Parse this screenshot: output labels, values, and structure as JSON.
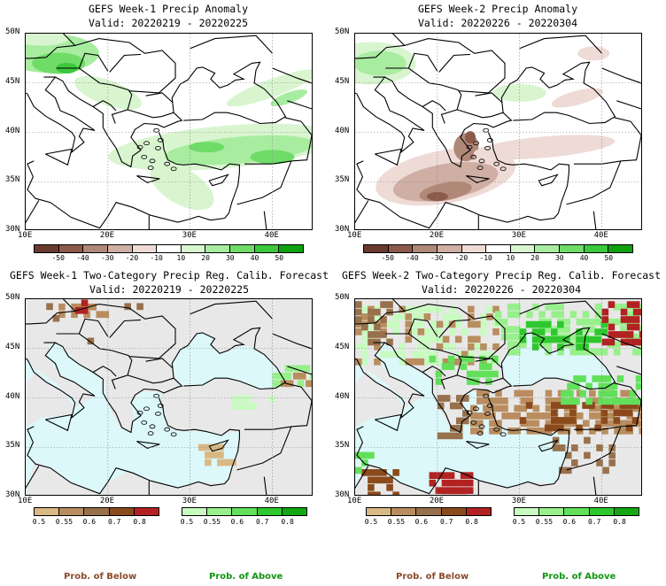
{
  "panels": [
    {
      "title": "GEFS Week-1 Precip Anomaly",
      "valid": "Valid: 20220219 - 20220225"
    },
    {
      "title": "GEFS Week-2 Precip Anomaly",
      "valid": "Valid: 20220226 - 20220304"
    },
    {
      "title": "GEFS Week-1 Two-Category Precip Reg. Calib. Forecast",
      "valid": "Valid: 20220219 - 20220225"
    },
    {
      "title": "GEFS Week-2 Two-Category Precip Reg. Calib. Forecast",
      "valid": "Valid: 20220226 - 20220304"
    }
  ],
  "lat_labels": [
    "50N",
    "45N",
    "40N",
    "35N",
    "30N"
  ],
  "lon_labels": [
    "10E",
    "20E",
    "30E",
    "40E"
  ],
  "anomaly_scale": {
    "labels": [
      "-50",
      "-40",
      "-30",
      "-20",
      "-10",
      "10",
      "20",
      "30",
      "40",
      "50"
    ],
    "colors": [
      "#6b3a2e",
      "#8c5a4a",
      "#b08878",
      "#cfaea4",
      "#eedbd6",
      "#ffffff",
      "#d8f5d0",
      "#a8eca0",
      "#6fdc68",
      "#3cc83c",
      "#0fa00f"
    ]
  },
  "below_scale": {
    "labels": [
      "0.5",
      "0.55",
      "0.6",
      "0.7",
      "0.8"
    ],
    "colors": [
      "#d9b884",
      "#b98d5f",
      "#97704c",
      "#8a4a1c",
      "#b22222"
    ],
    "caption": "Prob. of Below",
    "caption_color": "#8b4a2b"
  },
  "above_scale": {
    "labels": [
      "0.5",
      "0.55",
      "0.6",
      "0.7",
      "0.8"
    ],
    "colors": [
      "#c8fbc0",
      "#98f08c",
      "#62e05a",
      "#2ec82e",
      "#12a812"
    ],
    "caption": "Prob. of Above",
    "caption_color": "#129612"
  },
  "colors": {
    "land_gray": "#e8e8e8",
    "sea_cyan": "#dcf8fa",
    "border": "#000000"
  }
}
